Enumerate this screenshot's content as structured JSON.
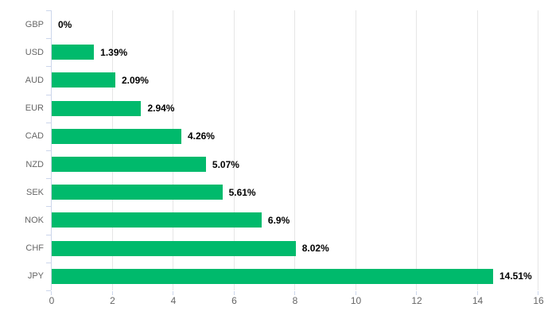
{
  "chart_data": {
    "type": "bar",
    "orientation": "horizontal",
    "title": "",
    "xlabel": "",
    "ylabel": "",
    "categories": [
      "GBP",
      "USD",
      "AUD",
      "EUR",
      "CAD",
      "NZD",
      "SEK",
      "NOK",
      "CHF",
      "JPY"
    ],
    "values": [
      0,
      1.39,
      2.09,
      2.94,
      4.26,
      5.07,
      5.61,
      6.9,
      8.02,
      14.51
    ],
    "data_labels": [
      "0%",
      "1.39%",
      "2.09%",
      "2.94%",
      "4.26%",
      "5.07%",
      "5.61%",
      "6.9%",
      "8.02%",
      "14.51%"
    ],
    "xlim": [
      0,
      16
    ],
    "x_ticks": [
      0,
      2,
      4,
      6,
      8,
      10,
      12,
      14,
      16
    ],
    "x_tick_labels": [
      "0",
      "2",
      "4",
      "6",
      "8",
      "10",
      "12",
      "14",
      "16"
    ],
    "grid": true,
    "legend": false,
    "colors": {
      "bar": "#00ba6c",
      "grid_line": "#e6e6e6",
      "axis_line": "#ccd6eb",
      "category_label": "#666666",
      "x_tick_label": "#666666",
      "data_label": "#000000",
      "background": "#ffffff"
    }
  }
}
